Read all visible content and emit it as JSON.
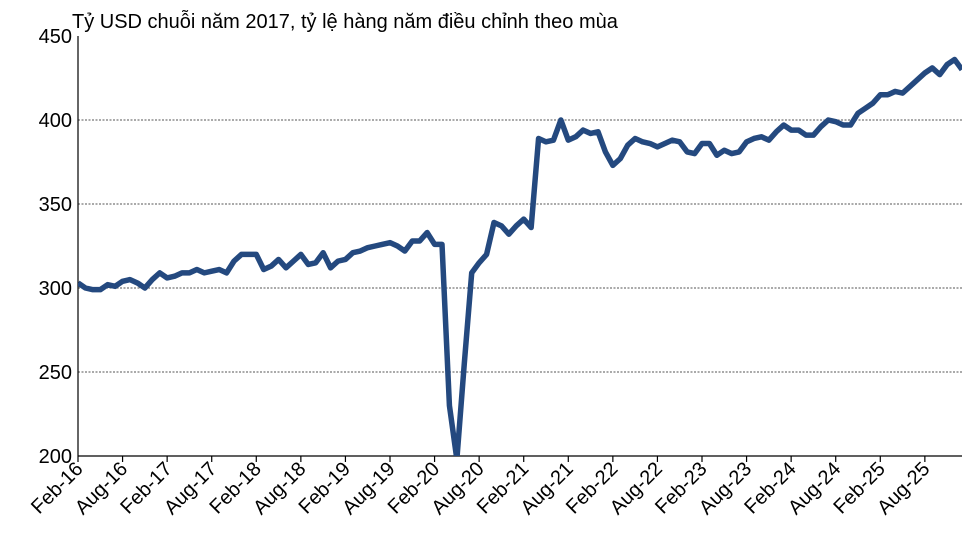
{
  "chart_data": {
    "type": "line",
    "subtitle": "Tỷ USD chuỗi năm 2017, tỷ lệ hàng năm điều chỉnh theo mùa",
    "categories": [
      "Feb-16",
      null,
      null,
      null,
      null,
      null,
      "Aug-16",
      null,
      null,
      null,
      null,
      null,
      "Feb-17",
      null,
      null,
      null,
      null,
      null,
      "Aug-17",
      null,
      null,
      null,
      null,
      null,
      "Feb-18",
      null,
      null,
      null,
      null,
      null,
      "Aug-18",
      null,
      null,
      null,
      null,
      null,
      "Feb-19",
      null,
      null,
      null,
      null,
      null,
      "Aug-19",
      null,
      null,
      null,
      null,
      null,
      "Feb-20",
      null,
      null,
      null,
      null,
      null,
      "Aug-20",
      null,
      null,
      null,
      null,
      null,
      "Feb-21",
      null,
      null,
      null,
      null,
      null,
      "Aug-21",
      null,
      null,
      null,
      null,
      null,
      "Feb-22",
      null,
      null,
      null,
      null,
      null,
      "Aug-22",
      null,
      null,
      null,
      null,
      null,
      "Feb-23",
      null,
      null,
      null,
      null,
      null,
      "Aug-23",
      null,
      null,
      null,
      null,
      null,
      "Feb-24",
      null,
      null,
      null,
      null,
      null,
      "Aug-24",
      null,
      null,
      null,
      null,
      null,
      "Feb-25",
      null,
      null,
      null,
      null,
      null,
      "Aug-25",
      null,
      null,
      null,
      null,
      null
    ],
    "series": [
      {
        "color": "#24497f",
        "values": [
          303,
          300,
          299,
          299,
          302,
          301,
          304,
          305,
          303,
          300,
          305,
          309,
          306,
          307,
          309,
          309,
          311,
          309,
          310,
          311,
          309,
          316,
          320,
          320,
          320,
          311,
          313,
          317,
          312,
          316,
          320,
          314,
          315,
          321,
          312,
          316,
          317,
          321,
          322,
          324,
          325,
          326,
          327,
          325,
          322,
          328,
          328,
          333,
          326,
          326,
          230,
          198,
          255,
          309,
          315,
          320,
          339,
          337,
          332,
          337,
          341,
          336,
          389,
          387,
          388,
          400,
          388,
          390,
          394,
          392,
          393,
          381,
          373,
          377,
          385,
          389,
          387,
          386,
          384,
          386,
          388,
          387,
          381,
          380,
          386,
          386,
          379,
          382,
          380,
          381,
          387,
          389,
          390,
          388,
          393,
          397,
          394,
          394,
          391,
          391,
          396,
          400,
          399,
          397,
          397,
          404,
          407,
          410,
          415,
          415,
          417,
          416,
          420,
          424,
          428,
          431,
          427,
          433,
          436,
          430
        ]
      }
    ],
    "ylim": [
      200,
      450
    ],
    "yticks": [
      200,
      250,
      300,
      350,
      400,
      450
    ],
    "grid": true
  }
}
